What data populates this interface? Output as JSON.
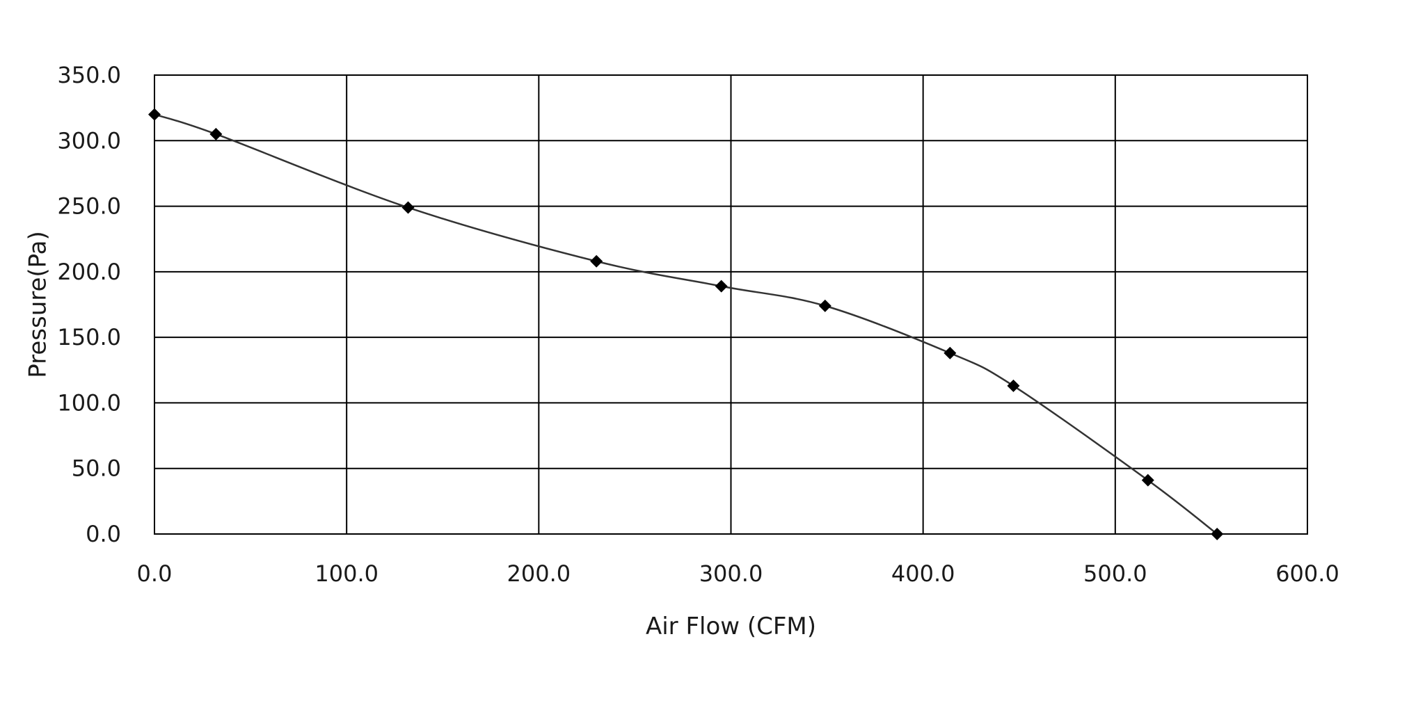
{
  "chart_data": {
    "type": "line",
    "title": "",
    "xlabel": "Air Flow (CFM)",
    "ylabel": "Pressure(Pa)",
    "xlim": [
      0,
      600
    ],
    "ylim": [
      0,
      350
    ],
    "x_ticks": [
      0,
      100,
      200,
      300,
      400,
      500,
      600
    ],
    "y_ticks": [
      0,
      50,
      100,
      150,
      200,
      250,
      300,
      350
    ],
    "x_tick_labels": [
      "0.0",
      "100.0",
      "200.0",
      "300.0",
      "400.0",
      "500.0",
      "600.0"
    ],
    "y_tick_labels": [
      "0.0",
      "50.0",
      "100.0",
      "150.0",
      "200.0",
      "250.0",
      "300.0",
      "350.0"
    ],
    "grid": true,
    "legend": "none",
    "marker": "diamond",
    "line_color": "#333333",
    "marker_color": "#000000",
    "grid_color": "#000000",
    "series": [
      {
        "x": [
          0,
          32,
          132,
          230,
          295,
          349,
          414,
          447,
          517,
          553
        ],
        "y": [
          320,
          305,
          249,
          208,
          189,
          174,
          138,
          113,
          41,
          0
        ]
      }
    ]
  }
}
